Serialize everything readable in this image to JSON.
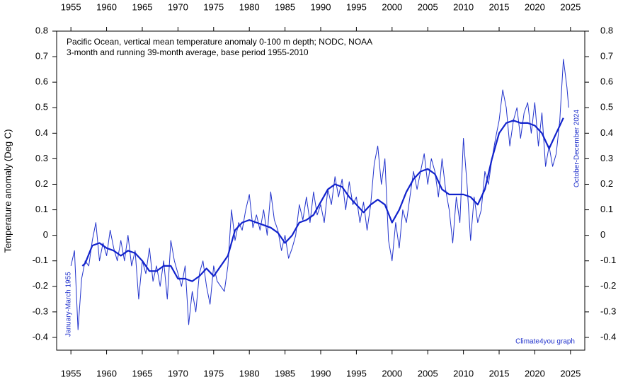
{
  "chart_data": {
    "type": "line",
    "title": "Pacific Ocean, vertical mean temperature anomaly 0-100 m depth; NODC, NOAA",
    "subtitle": "3-month and running 39-month average, base period 1955-2010",
    "y_label": "Temperature anomaly (Deg C)",
    "annotations": [
      "January-March 1955",
      "October-December 2024",
      "Climate4you graph"
    ],
    "xlim": [
      1953,
      2027
    ],
    "xticks": [
      1955,
      1960,
      1965,
      1970,
      1975,
      1980,
      1985,
      1990,
      1995,
      2000,
      2005,
      2010,
      2015,
      2020,
      2025
    ],
    "ylim": [
      -0.45,
      0.8
    ],
    "yticks": [
      -0.4,
      -0.3,
      -0.2,
      -0.1,
      0,
      0.1,
      0.2,
      0.3,
      0.4,
      0.5,
      0.6,
      0.7,
      0.8
    ],
    "series": [
      {
        "color": "#2233cc",
        "width": 1,
        "x": [
          1955.0,
          1955.5,
          1956.0,
          1956.5,
          1957.0,
          1957.5,
          1958.0,
          1958.5,
          1959.0,
          1959.5,
          1960.0,
          1960.5,
          1961.0,
          1961.5,
          1962.0,
          1962.5,
          1963.0,
          1963.5,
          1964.0,
          1964.5,
          1965.0,
          1965.5,
          1966.0,
          1966.5,
          1967.0,
          1967.5,
          1968.0,
          1968.5,
          1969.0,
          1969.5,
          1970.0,
          1970.5,
          1971.0,
          1971.5,
          1972.0,
          1972.5,
          1973.0,
          1973.5,
          1974.0,
          1974.5,
          1975.0,
          1975.5,
          1976.0,
          1976.5,
          1977.0,
          1977.5,
          1978.0,
          1978.5,
          1979.0,
          1979.5,
          1980.0,
          1980.5,
          1981.0,
          1981.5,
          1982.0,
          1982.5,
          1983.0,
          1983.5,
          1984.0,
          1984.5,
          1985.0,
          1985.5,
          1986.0,
          1986.5,
          1987.0,
          1987.5,
          1988.0,
          1988.5,
          1989.0,
          1989.5,
          1990.0,
          1990.5,
          1991.0,
          1991.5,
          1992.0,
          1992.5,
          1993.0,
          1993.5,
          1994.0,
          1994.5,
          1995.0,
          1995.5,
          1996.0,
          1996.5,
          1997.0,
          1997.5,
          1998.0,
          1998.5,
          1999.0,
          1999.5,
          2000.0,
          2000.5,
          2001.0,
          2001.5,
          2002.0,
          2002.5,
          2003.0,
          2003.5,
          2004.0,
          2004.5,
          2005.0,
          2005.5,
          2006.0,
          2006.5,
          2007.0,
          2007.5,
          2008.0,
          2008.5,
          2009.0,
          2009.5,
          2010.0,
          2010.5,
          2011.0,
          2011.5,
          2012.0,
          2012.5,
          2013.0,
          2013.5,
          2014.0,
          2014.5,
          2015.0,
          2015.5,
          2016.0,
          2016.5,
          2017.0,
          2017.5,
          2018.0,
          2018.5,
          2019.0,
          2019.5,
          2020.0,
          2020.5,
          2021.0,
          2021.5,
          2022.0,
          2022.5,
          2023.0,
          2023.5,
          2024.0,
          2024.5,
          2024.75
        ],
        "values": [
          -0.12,
          -0.06,
          -0.37,
          -0.17,
          -0.1,
          -0.12,
          -0.02,
          0.05,
          -0.1,
          -0.03,
          -0.08,
          0.02,
          -0.05,
          -0.1,
          -0.02,
          -0.1,
          0.0,
          -0.12,
          -0.06,
          -0.25,
          -0.1,
          -0.15,
          -0.05,
          -0.18,
          -0.12,
          -0.2,
          -0.1,
          -0.25,
          -0.02,
          -0.1,
          -0.15,
          -0.2,
          -0.12,
          -0.35,
          -0.22,
          -0.3,
          -0.15,
          -0.1,
          -0.2,
          -0.27,
          -0.12,
          -0.18,
          -0.2,
          -0.22,
          -0.12,
          0.1,
          -0.02,
          0.05,
          0.02,
          0.1,
          0.16,
          0.03,
          0.08,
          0.02,
          0.1,
          0.0,
          0.17,
          0.06,
          0.02,
          -0.06,
          0.0,
          -0.09,
          -0.05,
          0.0,
          0.12,
          0.06,
          0.15,
          0.05,
          0.17,
          0.08,
          0.12,
          0.05,
          0.18,
          0.12,
          0.23,
          0.15,
          0.22,
          0.1,
          0.21,
          0.12,
          0.15,
          0.05,
          0.13,
          0.02,
          0.12,
          0.28,
          0.35,
          0.2,
          0.3,
          -0.02,
          -0.1,
          0.05,
          -0.05,
          0.1,
          0.05,
          0.15,
          0.25,
          0.18,
          0.25,
          0.32,
          0.2,
          0.3,
          0.25,
          0.15,
          0.3,
          0.18,
          0.1,
          -0.03,
          0.15,
          0.05,
          0.38,
          0.2,
          -0.02,
          0.15,
          0.05,
          0.1,
          0.25,
          0.2,
          0.3,
          0.38,
          0.45,
          0.57,
          0.5,
          0.35,
          0.45,
          0.5,
          0.38,
          0.48,
          0.52,
          0.4,
          0.52,
          0.35,
          0.48,
          0.27,
          0.35,
          0.27,
          0.32,
          0.45,
          0.69,
          0.58,
          0.5
        ]
      },
      {
        "color": "#1122cc",
        "width": 2.2,
        "x": [
          1956.6,
          1957,
          1958,
          1959,
          1960,
          1961,
          1962,
          1963,
          1964,
          1965,
          1966,
          1967,
          1968,
          1969,
          1970,
          1971,
          1972,
          1973,
          1974,
          1975,
          1976,
          1977,
          1978,
          1979,
          1980,
          1981,
          1982,
          1983,
          1984,
          1985,
          1986,
          1987,
          1988,
          1989,
          1990,
          1991,
          1992,
          1993,
          1994,
          1995,
          1996,
          1997,
          1998,
          1999,
          2000,
          2001,
          2002,
          2003,
          2004,
          2005,
          2006,
          2007,
          2008,
          2009,
          2010,
          2011,
          2012,
          2013,
          2014,
          2015,
          2016,
          2017,
          2018,
          2019,
          2020,
          2021,
          2022,
          2023,
          2024
        ],
        "values": [
          -0.12,
          -0.11,
          -0.04,
          -0.03,
          -0.05,
          -0.06,
          -0.08,
          -0.06,
          -0.07,
          -0.1,
          -0.14,
          -0.14,
          -0.12,
          -0.12,
          -0.17,
          -0.17,
          -0.18,
          -0.16,
          -0.13,
          -0.16,
          -0.12,
          -0.08,
          0.02,
          0.05,
          0.06,
          0.05,
          0.04,
          0.03,
          0.01,
          -0.03,
          0.0,
          0.05,
          0.06,
          0.08,
          0.13,
          0.18,
          0.2,
          0.19,
          0.15,
          0.12,
          0.09,
          0.12,
          0.14,
          0.12,
          0.05,
          0.1,
          0.17,
          0.22,
          0.25,
          0.26,
          0.24,
          0.18,
          0.16,
          0.16,
          0.16,
          0.15,
          0.12,
          0.18,
          0.3,
          0.4,
          0.44,
          0.45,
          0.44,
          0.44,
          0.43,
          0.4,
          0.34,
          0.4,
          0.46
        ]
      }
    ]
  }
}
